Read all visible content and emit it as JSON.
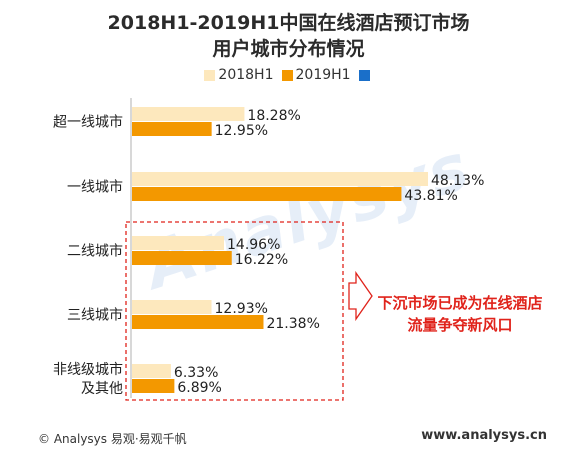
{
  "title_line1": "2018H1-2019H1中国在线酒店预订市场",
  "title_line2": "用户城市分布情况",
  "legend": [
    {
      "label": "2018H1",
      "color": "#fde8bd"
    },
    {
      "label": "2019H1",
      "color": "#f39800"
    },
    {
      "label": "",
      "color": "#1a6fc9"
    }
  ],
  "callout_line1": "下沉市场已成为在线酒店",
  "callout_line2": "流量争夺新风口",
  "footer_left": "© Analysys 易观·易观千帆",
  "footer_right": "www.analysys.cn",
  "chart_data": {
    "type": "bar",
    "orientation": "horizontal",
    "categories": [
      "超一线城市",
      "一线城市",
      "二线城市",
      "三线城市",
      "非线级城市\n及其他"
    ],
    "series": [
      {
        "name": "2018H1",
        "values": [
          18.28,
          48.13,
          14.96,
          12.93,
          6.33
        ],
        "labels": [
          "18.28%",
          "48.13%",
          "14.96%",
          "12.93%",
          "6.33%"
        ],
        "color": "#fde8bd"
      },
      {
        "name": "2019H1",
        "values": [
          12.95,
          43.81,
          16.22,
          21.38,
          6.89
        ],
        "labels": [
          "12.95%",
          "43.81%",
          "16.22%",
          "21.38%",
          "6.89%"
        ],
        "color": "#f39800"
      }
    ],
    "xlim": [
      0,
      50
    ],
    "grid": false,
    "legend_position": "top"
  }
}
